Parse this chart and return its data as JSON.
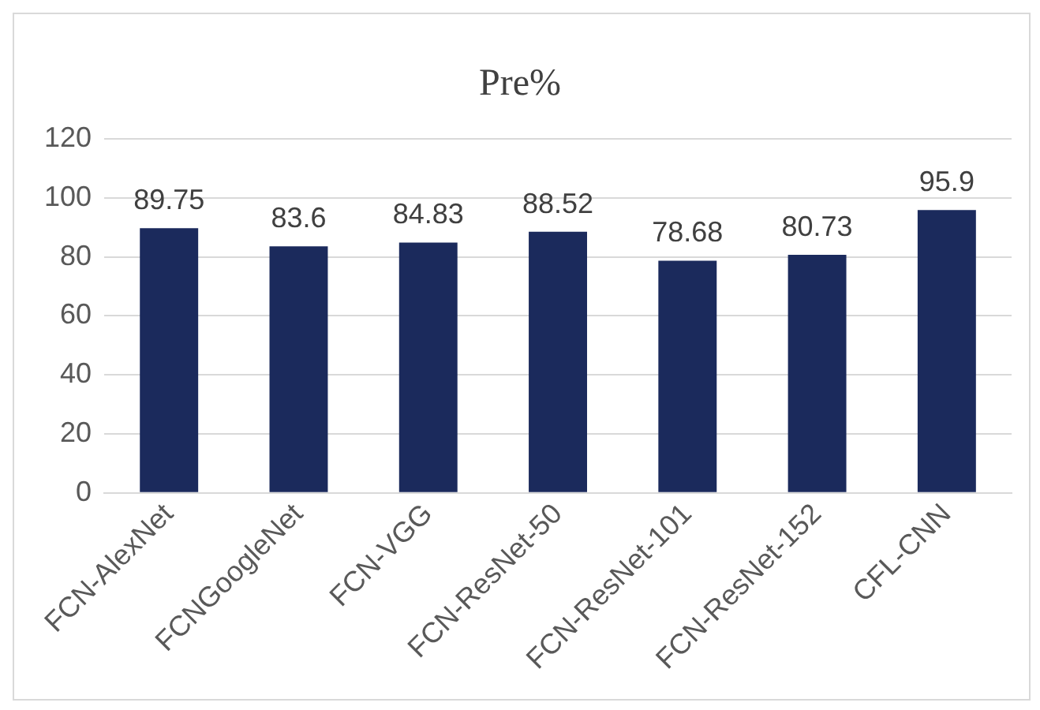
{
  "chart_data": {
    "type": "bar",
    "title": "Pre%",
    "categories": [
      "FCN-AlexNet",
      "FCNGoogleNet",
      "FCN-VGG",
      "FCN-ResNet-50",
      "FCN-ResNet-101",
      "FCN-ResNet-152",
      "CFL-CNN"
    ],
    "values": [
      89.75,
      83.6,
      84.83,
      88.52,
      78.68,
      80.73,
      95.9
    ],
    "color": "#1b2a5c",
    "ylim": [
      0,
      120
    ],
    "yticks": [
      0,
      20,
      40,
      60,
      80,
      100,
      120
    ],
    "grid": "y",
    "data_labels": true,
    "legend": false
  }
}
